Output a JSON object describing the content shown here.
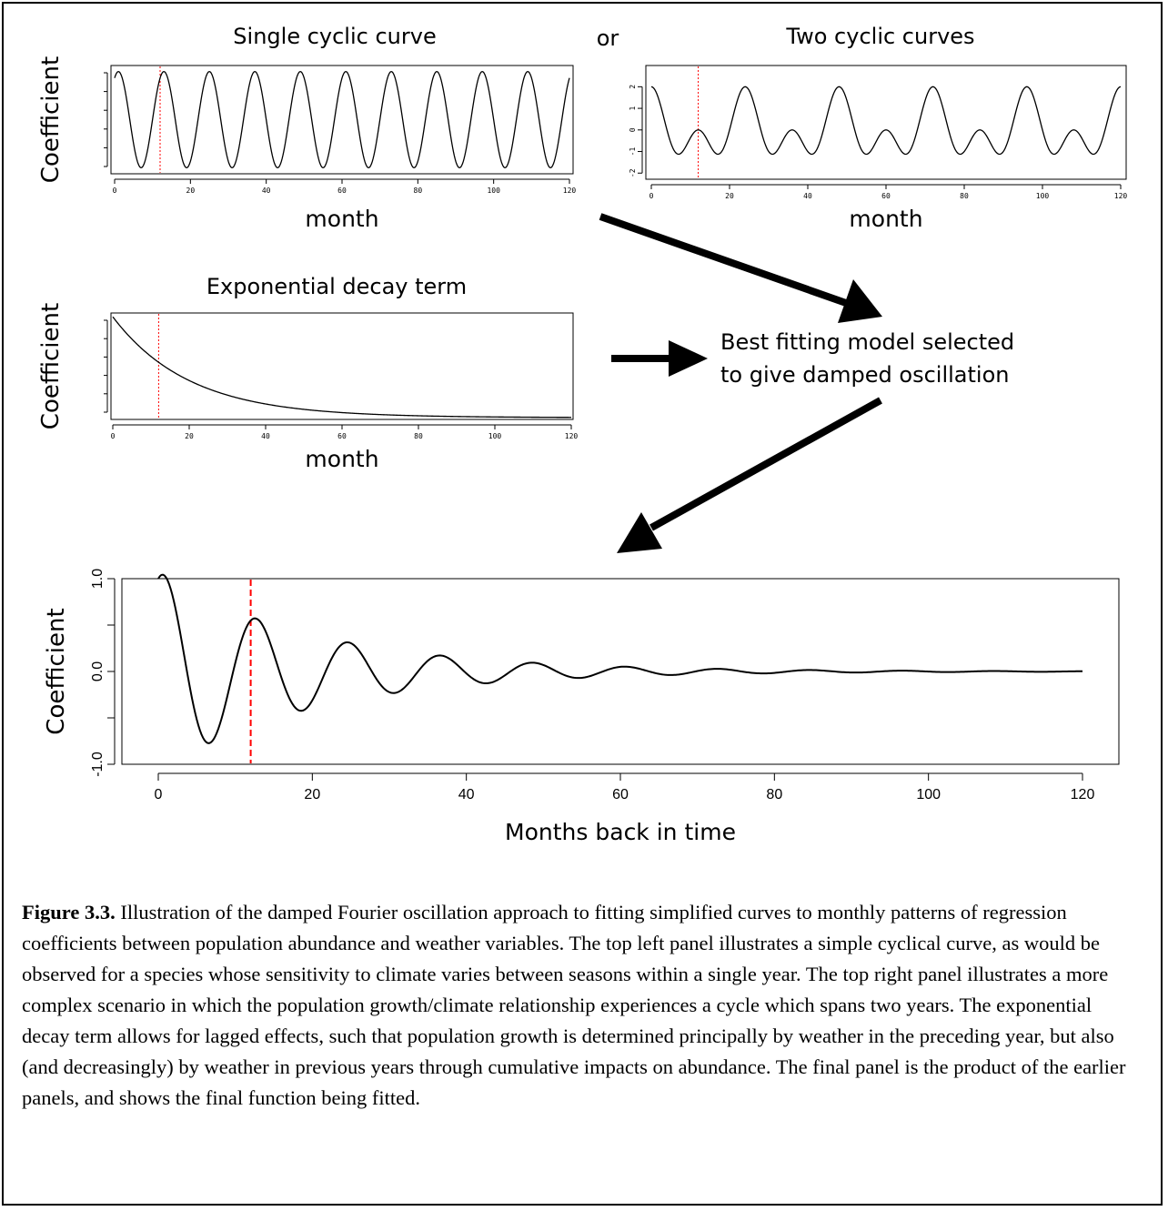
{
  "figure": {
    "panel1_title": "Single cyclic curve",
    "connector": "or",
    "panel2_title": "Two cyclic curves",
    "panel3_title": "Exponential decay term",
    "annotation_line1": "Best fitting model selected",
    "annotation_line2": "to give damped oscillation"
  },
  "caption": {
    "label": "Figure 3.3.",
    "text": " Illustration of the damped Fourier oscillation approach to fitting simplified curves to monthly patterns of regression coefficients between population abundance and weather variables. The top left panel illustrates a simple cyclical curve, as would be observed for a species whose sensitivity to climate varies between seasons within a single year. The top right panel illustrates a more complex scenario in which the population growth/climate relationship experiences a cycle which spans two years. The exponential decay term allows for lagged effects, such that population growth is determined principally by weather in the preceding year, but also (and decreasingly) by weather in previous years through cumulative impacts on abundance. The final panel is the product of the earlier panels, and shows the final function being fitted."
  },
  "colors": {
    "line": "#000000",
    "marker": "#ff0000"
  },
  "chart_data": [
    {
      "type": "line",
      "title": "Single cyclic curve",
      "xlabel": "month",
      "ylabel": "Coefficient",
      "xlim": [
        0,
        120
      ],
      "ylim": [
        -1.05,
        1.05
      ],
      "xticks": [
        0,
        20,
        40,
        60,
        80,
        100,
        120
      ],
      "yticks": [],
      "reference_line_x": 12,
      "series": [
        {
          "function": "0.5*sqrt(3)*cos(2*pi*x/12) + 0.5*sin(2*pi*x/12)",
          "x_range": [
            0,
            120
          ]
        }
      ]
    },
    {
      "type": "line",
      "title": "Two cyclic curves",
      "xlabel": "month",
      "ylabel": "",
      "xlim": [
        0,
        120
      ],
      "ylim": [
        -2.2,
        2.9
      ],
      "xticks": [
        0,
        20,
        40,
        60,
        80,
        100,
        120
      ],
      "yticks": [
        2,
        1,
        0,
        -1,
        -2
      ],
      "reference_line_x": 12,
      "series": [
        {
          "function": "cos(2*pi*x/12) + cos(2*pi*x/24)",
          "x_range": [
            0,
            120
          ]
        }
      ]
    },
    {
      "type": "line",
      "title": "Exponential decay term",
      "xlabel": "month",
      "ylabel": "Coefficient",
      "xlim": [
        0,
        120
      ],
      "ylim": [
        0,
        1.02
      ],
      "xticks": [
        0,
        20,
        40,
        60,
        80,
        100,
        120
      ],
      "yticks": [],
      "reference_line_x": 12,
      "series": [
        {
          "function": "exp(-x/20)",
          "x_range": [
            0,
            120
          ]
        }
      ]
    },
    {
      "type": "line",
      "title": "",
      "xlabel": "Months back in time",
      "ylabel": "Coefficient",
      "xlim": [
        0,
        120
      ],
      "ylim": [
        -1.0,
        1.0
      ],
      "xticks": [
        0,
        20,
        40,
        60,
        80,
        100,
        120
      ],
      "yticks": [
        1.0,
        0.5,
        0.0,
        -0.5,
        -1.0
      ],
      "ytick_labels": [
        "1.0",
        "",
        "0.0",
        "",
        "-1.0"
      ],
      "reference_line_x": 12,
      "series": [
        {
          "function": "exp(-x/20) * (cos(2*pi*x/12) + 0.4*sin(2*pi*x/12))",
          "x_range": [
            0,
            120
          ]
        }
      ]
    }
  ]
}
